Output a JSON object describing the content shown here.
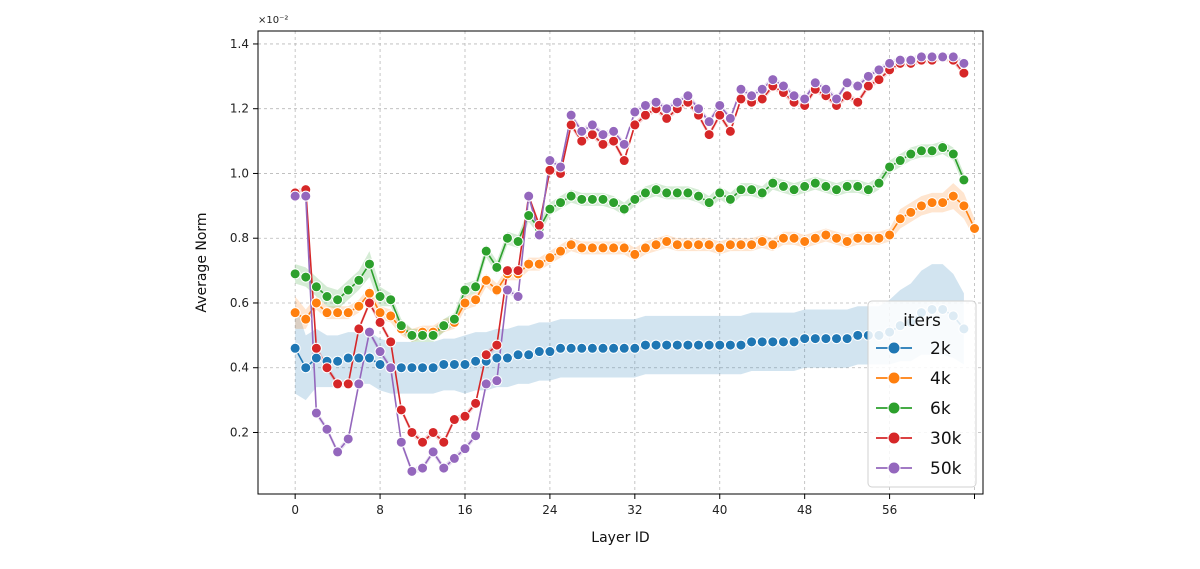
{
  "chart_data": {
    "type": "line",
    "xlabel": "Layer ID",
    "ylabel": "Average Norm",
    "y_scale_label": "×10⁻²",
    "xlim": [
      -3.5,
      64.8
    ],
    "ylim": [
      0.01,
      1.44
    ],
    "xticks": [
      0,
      8,
      16,
      24,
      32,
      40,
      48,
      56,
      64
    ],
    "xtick_labels": [
      "0",
      "8",
      "16",
      "24",
      "32",
      "40",
      "48",
      "56",
      ""
    ],
    "yticks": [
      0.2,
      0.4,
      0.6,
      0.8,
      1.0,
      1.2,
      1.4
    ],
    "ytick_labels": [
      "0.2",
      "0.4",
      "0.6",
      "0.8",
      "1.0",
      "1.2",
      "1.4"
    ],
    "grid": true,
    "legend": {
      "title": "iters",
      "position": "lower-right"
    },
    "series": [
      {
        "name": "2k",
        "color": "#1f77b4",
        "values": [
          0.46,
          0.4,
          0.43,
          0.42,
          0.42,
          0.43,
          0.43,
          0.43,
          0.41,
          0.4,
          0.4,
          0.4,
          0.4,
          0.4,
          0.41,
          0.41,
          0.41,
          0.42,
          0.42,
          0.43,
          0.43,
          0.44,
          0.44,
          0.45,
          0.45,
          0.46,
          0.46,
          0.46,
          0.46,
          0.46,
          0.46,
          0.46,
          0.46,
          0.47,
          0.47,
          0.47,
          0.47,
          0.47,
          0.47,
          0.47,
          0.47,
          0.47,
          0.47,
          0.48,
          0.48,
          0.48,
          0.48,
          0.48,
          0.49,
          0.49,
          0.49,
          0.49,
          0.49,
          0.5,
          0.5,
          0.5,
          0.51,
          0.53,
          0.54,
          0.57,
          0.58,
          0.58,
          0.56,
          0.52
        ],
        "band": [
          0.14,
          0.1,
          0.09,
          0.08,
          0.08,
          0.08,
          0.08,
          0.08,
          0.08,
          0.08,
          0.08,
          0.08,
          0.08,
          0.08,
          0.08,
          0.08,
          0.09,
          0.09,
          0.09,
          0.09,
          0.09,
          0.09,
          0.09,
          0.09,
          0.09,
          0.09,
          0.09,
          0.09,
          0.09,
          0.09,
          0.09,
          0.09,
          0.09,
          0.09,
          0.09,
          0.09,
          0.09,
          0.09,
          0.09,
          0.09,
          0.09,
          0.09,
          0.09,
          0.09,
          0.09,
          0.09,
          0.09,
          0.09,
          0.09,
          0.09,
          0.09,
          0.09,
          0.09,
          0.09,
          0.09,
          0.09,
          0.1,
          0.11,
          0.12,
          0.13,
          0.14,
          0.14,
          0.13,
          0.11
        ]
      },
      {
        "name": "4k",
        "color": "#ff7f0e",
        "values": [
          0.57,
          0.55,
          0.6,
          0.57,
          0.57,
          0.57,
          0.59,
          0.63,
          0.57,
          0.56,
          0.52,
          0.5,
          0.51,
          0.51,
          0.53,
          0.54,
          0.6,
          0.61,
          0.67,
          0.64,
          0.69,
          0.69,
          0.72,
          0.72,
          0.74,
          0.76,
          0.78,
          0.77,
          0.77,
          0.77,
          0.77,
          0.77,
          0.75,
          0.77,
          0.78,
          0.79,
          0.78,
          0.78,
          0.78,
          0.78,
          0.77,
          0.78,
          0.78,
          0.78,
          0.79,
          0.78,
          0.8,
          0.8,
          0.79,
          0.8,
          0.81,
          0.8,
          0.79,
          0.8,
          0.8,
          0.8,
          0.81,
          0.86,
          0.88,
          0.9,
          0.91,
          0.91,
          0.93,
          0.9,
          0.83
        ],
        "band": [
          0.05,
          0.03,
          0.02,
          0.02,
          0.02,
          0.02,
          0.02,
          0.02,
          0.02,
          0.02,
          0.02,
          0.02,
          0.02,
          0.02,
          0.02,
          0.02,
          0.02,
          0.02,
          0.02,
          0.02,
          0.02,
          0.02,
          0.02,
          0.02,
          0.02,
          0.02,
          0.02,
          0.02,
          0.02,
          0.02,
          0.02,
          0.02,
          0.02,
          0.02,
          0.02,
          0.02,
          0.02,
          0.02,
          0.02,
          0.02,
          0.02,
          0.02,
          0.02,
          0.02,
          0.02,
          0.02,
          0.02,
          0.02,
          0.02,
          0.02,
          0.02,
          0.02,
          0.02,
          0.02,
          0.02,
          0.02,
          0.02,
          0.03,
          0.03,
          0.03,
          0.03,
          0.03,
          0.04,
          0.04,
          0.03
        ]
      },
      {
        "name": "6k",
        "color": "#2ca02c",
        "values": [
          0.69,
          0.68,
          0.65,
          0.62,
          0.61,
          0.64,
          0.67,
          0.72,
          0.62,
          0.61,
          0.53,
          0.5,
          0.5,
          0.5,
          0.53,
          0.55,
          0.64,
          0.65,
          0.76,
          0.71,
          0.8,
          0.79,
          0.87,
          0.83,
          0.89,
          0.91,
          0.93,
          0.92,
          0.92,
          0.92,
          0.91,
          0.89,
          0.92,
          0.94,
          0.95,
          0.94,
          0.94,
          0.94,
          0.93,
          0.91,
          0.94,
          0.92,
          0.95,
          0.95,
          0.94,
          0.97,
          0.96,
          0.95,
          0.96,
          0.97,
          0.96,
          0.95,
          0.96,
          0.96,
          0.95,
          0.97,
          1.02,
          1.04,
          1.06,
          1.07,
          1.07,
          1.08,
          1.06,
          0.98
        ],
        "band": [
          0.03,
          0.03,
          0.03,
          0.03,
          0.03,
          0.03,
          0.03,
          0.04,
          0.03,
          0.02,
          0.02,
          0.02,
          0.02,
          0.02,
          0.02,
          0.02,
          0.02,
          0.02,
          0.02,
          0.02,
          0.02,
          0.02,
          0.02,
          0.02,
          0.02,
          0.02,
          0.02,
          0.02,
          0.02,
          0.02,
          0.02,
          0.02,
          0.02,
          0.02,
          0.02,
          0.02,
          0.02,
          0.02,
          0.02,
          0.02,
          0.02,
          0.02,
          0.02,
          0.02,
          0.02,
          0.02,
          0.02,
          0.02,
          0.02,
          0.02,
          0.02,
          0.02,
          0.02,
          0.02,
          0.02,
          0.02,
          0.02,
          0.02,
          0.02,
          0.02,
          0.02,
          0.02,
          0.02,
          0.02
        ]
      },
      {
        "name": "30k",
        "color": "#d62728",
        "values": [
          0.94,
          0.95,
          0.46,
          0.4,
          0.35,
          0.35,
          0.52,
          0.6,
          0.54,
          0.48,
          0.27,
          0.2,
          0.17,
          0.2,
          0.17,
          0.24,
          0.25,
          0.29,
          0.44,
          0.47,
          0.7,
          0.7,
          0.93,
          0.84,
          1.01,
          1.0,
          1.15,
          1.1,
          1.12,
          1.09,
          1.1,
          1.04,
          1.15,
          1.18,
          1.2,
          1.17,
          1.2,
          1.22,
          1.18,
          1.12,
          1.18,
          1.13,
          1.23,
          1.22,
          1.23,
          1.27,
          1.25,
          1.22,
          1.21,
          1.26,
          1.24,
          1.21,
          1.24,
          1.22,
          1.27,
          1.29,
          1.32,
          1.34,
          1.34,
          1.35,
          1.35,
          1.36,
          1.35,
          1.31
        ],
        "band": [
          0.01,
          0.01,
          0.01,
          0.01,
          0.01,
          0.01,
          0.01,
          0.01,
          0.01,
          0.01,
          0.01,
          0.01,
          0.01,
          0.01,
          0.01,
          0.01,
          0.01,
          0.01,
          0.01,
          0.01,
          0.01,
          0.01,
          0.01,
          0.01,
          0.01,
          0.01,
          0.01,
          0.01,
          0.01,
          0.01,
          0.01,
          0.01,
          0.01,
          0.01,
          0.01,
          0.01,
          0.01,
          0.01,
          0.01,
          0.01,
          0.01,
          0.01,
          0.01,
          0.01,
          0.01,
          0.01,
          0.01,
          0.01,
          0.01,
          0.01,
          0.01,
          0.01,
          0.01,
          0.01,
          0.01,
          0.01,
          0.01,
          0.01,
          0.01,
          0.01,
          0.01,
          0.01,
          0.01,
          0.01
        ]
      },
      {
        "name": "50k",
        "color": "#9467bd",
        "values": [
          0.93,
          0.93,
          0.26,
          0.21,
          0.14,
          0.18,
          0.35,
          0.51,
          0.45,
          0.4,
          0.17,
          0.08,
          0.09,
          0.14,
          0.09,
          0.12,
          0.15,
          0.19,
          0.35,
          0.36,
          0.64,
          0.62,
          0.93,
          0.81,
          1.04,
          1.02,
          1.18,
          1.13,
          1.15,
          1.12,
          1.13,
          1.09,
          1.19,
          1.21,
          1.22,
          1.2,
          1.22,
          1.24,
          1.2,
          1.16,
          1.21,
          1.17,
          1.26,
          1.24,
          1.26,
          1.29,
          1.27,
          1.24,
          1.23,
          1.28,
          1.26,
          1.23,
          1.28,
          1.27,
          1.3,
          1.32,
          1.34,
          1.35,
          1.35,
          1.36,
          1.36,
          1.36,
          1.36,
          1.34
        ],
        "band": [
          0.01,
          0.01,
          0.01,
          0.01,
          0.01,
          0.01,
          0.01,
          0.01,
          0.01,
          0.01,
          0.01,
          0.01,
          0.01,
          0.01,
          0.01,
          0.01,
          0.01,
          0.01,
          0.01,
          0.01,
          0.01,
          0.01,
          0.01,
          0.01,
          0.01,
          0.01,
          0.01,
          0.01,
          0.01,
          0.01,
          0.01,
          0.01,
          0.01,
          0.01,
          0.01,
          0.01,
          0.01,
          0.01,
          0.01,
          0.01,
          0.01,
          0.01,
          0.01,
          0.01,
          0.01,
          0.01,
          0.01,
          0.01,
          0.01,
          0.01,
          0.01,
          0.01,
          0.01,
          0.01,
          0.01,
          0.01,
          0.01,
          0.01,
          0.01,
          0.01,
          0.01,
          0.01,
          0.01,
          0.01
        ]
      }
    ]
  }
}
